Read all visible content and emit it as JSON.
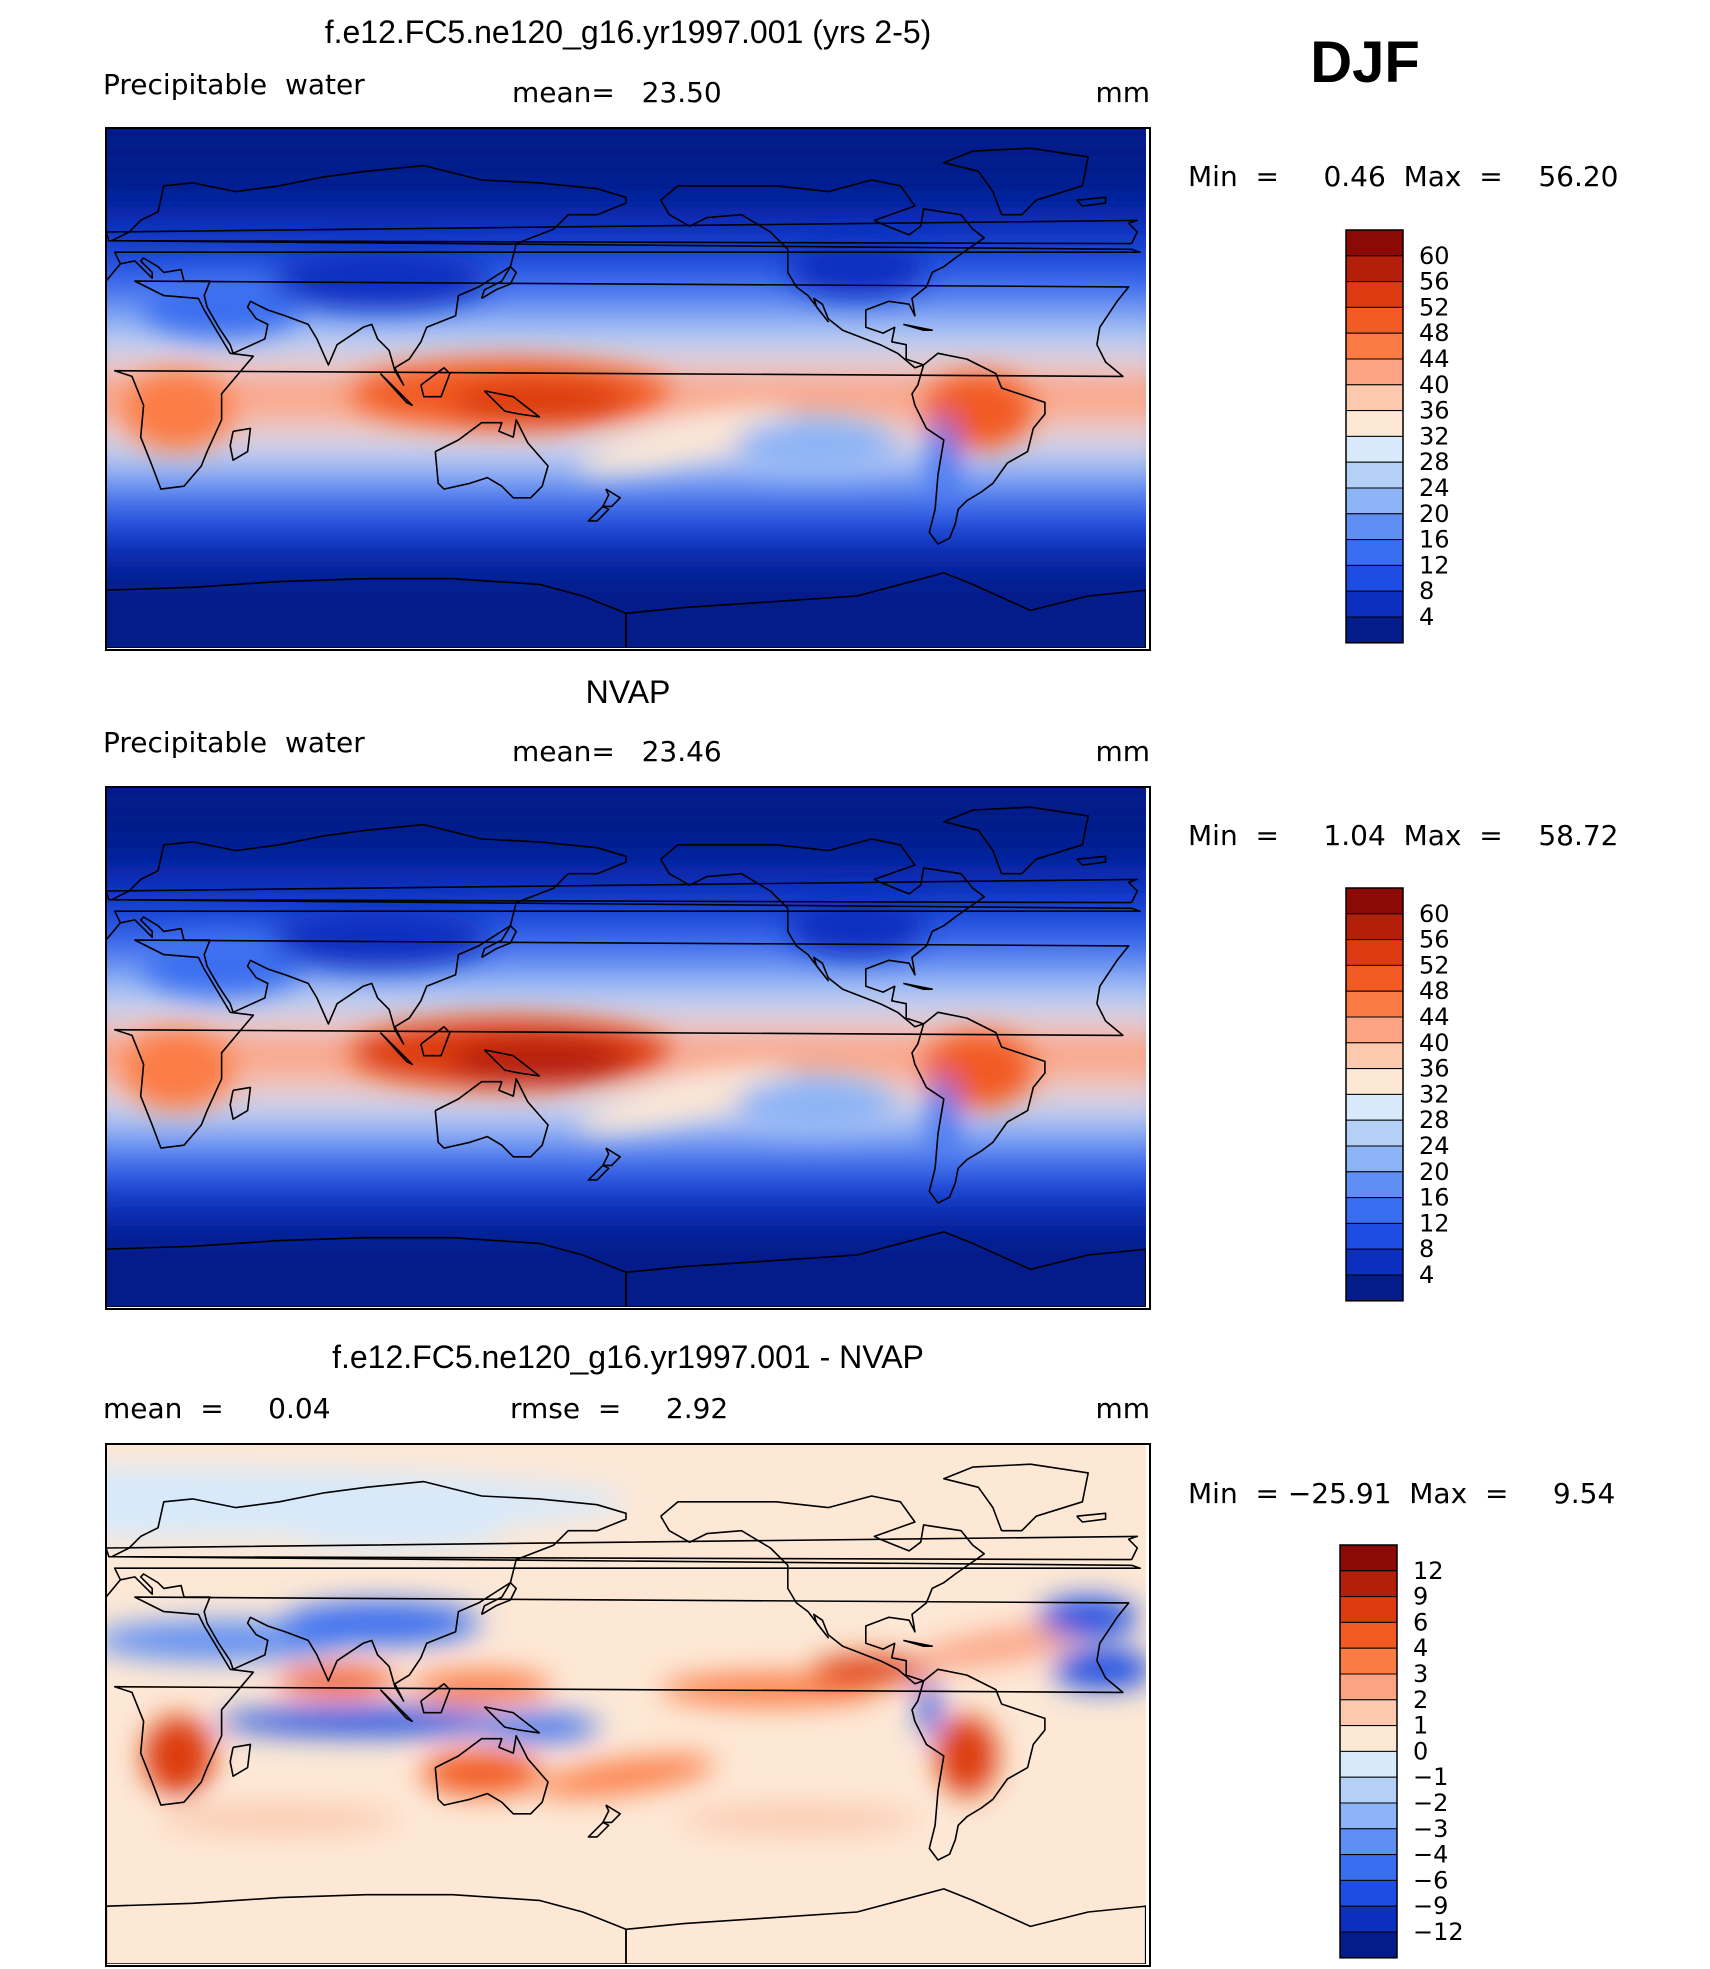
{
  "season": "DJF",
  "panels": [
    {
      "id": "model",
      "title": "f.e12.FC5.ne120_g16.yr1997.001 (yrs 2-5)",
      "left_label": "Precipitable  water",
      "center_label": "mean=   23.50",
      "units": "mm",
      "min_max": "Min  =     0.46  Max  =    56.20",
      "map_kind": "precipitable_water",
      "levels": [
        "60",
        "56",
        "52",
        "48",
        "44",
        "40",
        "36",
        "32",
        "28",
        "24",
        "20",
        "16",
        "12",
        "8",
        "4"
      ],
      "colors": [
        "#8b0a06",
        "#b41f0c",
        "#dc3a10",
        "#f25a23",
        "#fb7b45",
        "#fca383",
        "#fcc8ae",
        "#fde8d6",
        "#d7e9fa",
        "#b4d0f6",
        "#8cb4f6",
        "#5f8ff3",
        "#3a6ef0",
        "#1d4de3",
        "#0c2fbf",
        "#041c8a"
      ]
    },
    {
      "id": "obs",
      "title": "NVAP",
      "left_label": "Precipitable  water",
      "center_label": "mean=   23.46",
      "units": "mm",
      "min_max": "Min  =     1.04  Max  =    58.72",
      "map_kind": "precipitable_water",
      "levels": [
        "60",
        "56",
        "52",
        "48",
        "44",
        "40",
        "36",
        "32",
        "28",
        "24",
        "20",
        "16",
        "12",
        "8",
        "4"
      ],
      "colors": [
        "#8b0a06",
        "#b41f0c",
        "#dc3a10",
        "#f25a23",
        "#fb7b45",
        "#fca383",
        "#fcc8ae",
        "#fde8d6",
        "#d7e9fa",
        "#b4d0f6",
        "#8cb4f6",
        "#5f8ff3",
        "#3a6ef0",
        "#1d4de3",
        "#0c2fbf",
        "#041c8a"
      ]
    },
    {
      "id": "diff",
      "title": "f.e12.FC5.ne120_g16.yr1997.001 - NVAP",
      "left_label": "mean  =     0.04",
      "center_label": "rmse  =     2.92",
      "units": "mm",
      "min_max": "Min  = −25.91  Max  =     9.54",
      "map_kind": "difference",
      "levels": [
        "12",
        "9",
        "6",
        "4",
        "3",
        "2",
        "1",
        "0",
        "−1",
        "−2",
        "−3",
        "−4",
        "−6",
        "−9",
        "−12"
      ],
      "colors": [
        "#8b0a06",
        "#b41f0c",
        "#dc3a10",
        "#f25a23",
        "#fb7b45",
        "#fca383",
        "#fcc8ae",
        "#fde8d6",
        "#d7e9fa",
        "#b4d0f6",
        "#8cb4f6",
        "#5f8ff3",
        "#3a6ef0",
        "#1d4de3",
        "#0c2fbf",
        "#041c8a"
      ]
    }
  ]
}
